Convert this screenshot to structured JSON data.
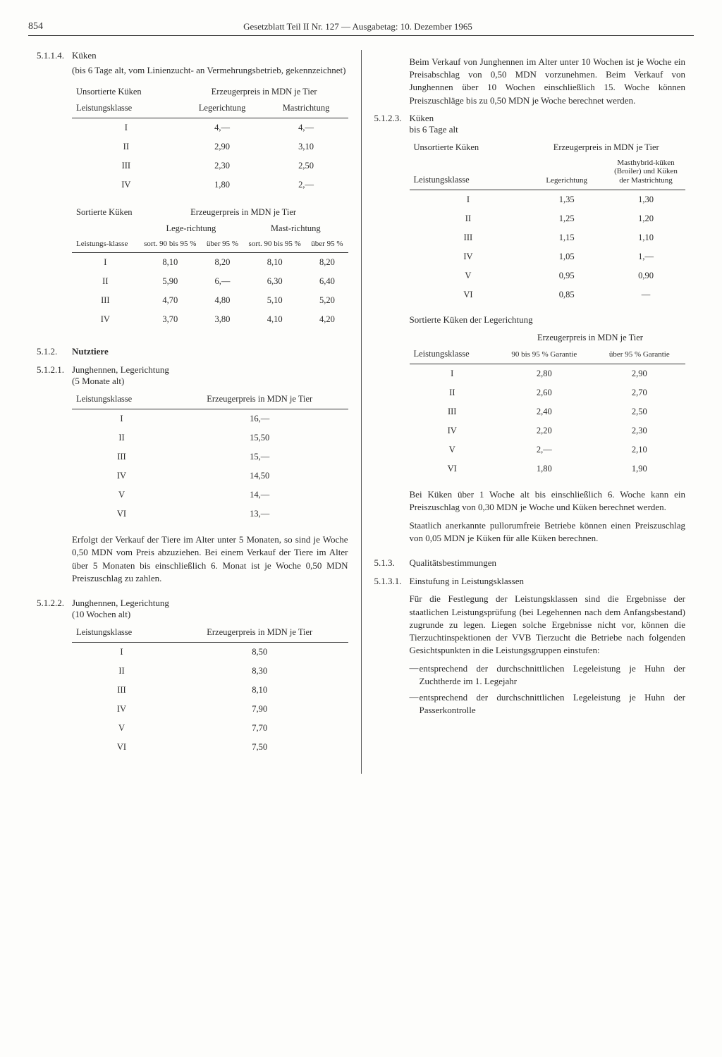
{
  "header": {
    "page": "854",
    "title": "Gesetzblatt Teil II Nr. 127 — Ausgabetag: 10. Dezember 1965"
  },
  "left": {
    "s5114": {
      "num": "5.1.1.4.",
      "title": "Küken",
      "note": "(bis 6 Tage alt, vom Linienzucht- an Vermehrungsbetrieb, gekennzeichnet)",
      "table1": {
        "h1": "Unsortierte Küken",
        "h2": "Erzeugerpreis in MDN je Tier",
        "c1": "Leistungsklasse",
        "c2": "Legerichtung",
        "c3": "Mastrichtung",
        "rows": [
          {
            "k": "I",
            "a": "4,—",
            "b": "4,—"
          },
          {
            "k": "II",
            "a": "2,90",
            "b": "3,10"
          },
          {
            "k": "III",
            "a": "2,30",
            "b": "2,50"
          },
          {
            "k": "IV",
            "a": "1,80",
            "b": "2,—"
          }
        ]
      },
      "table2": {
        "h1": "Sortierte Küken",
        "h2": "Erzeugerpreis in MDN je Tier",
        "g1": "Lege-richtung",
        "g2": "Mast-richtung",
        "c0": "Leistungs-klasse",
        "c1": "sort. 90 bis 95 %",
        "c2": "über 95 %",
        "c3": "sort. 90 bis 95 %",
        "c4": "über 95 %",
        "rows": [
          {
            "k": "I",
            "a": "8,10",
            "b": "8,20",
            "c": "8,10",
            "d": "8,20"
          },
          {
            "k": "II",
            "a": "5,90",
            "b": "6,—",
            "c": "6,30",
            "d": "6,40"
          },
          {
            "k": "III",
            "a": "4,70",
            "b": "4,80",
            "c": "5,10",
            "d": "5,20"
          },
          {
            "k": "IV",
            "a": "3,70",
            "b": "3,80",
            "c": "4,10",
            "d": "4,20"
          }
        ]
      }
    },
    "s512": {
      "num": "5.1.2.",
      "title": "Nutztiere"
    },
    "s5121": {
      "num": "5.1.2.1.",
      "title": "Junghennen, Legerichtung",
      "sub": "(5 Monate alt)",
      "c1": "Leistungsklasse",
      "c2": "Erzeugerpreis in MDN je Tier",
      "rows": [
        {
          "k": "I",
          "v": "16,—"
        },
        {
          "k": "II",
          "v": "15,50"
        },
        {
          "k": "III",
          "v": "15,—"
        },
        {
          "k": "IV",
          "v": "14,50"
        },
        {
          "k": "V",
          "v": "14,—"
        },
        {
          "k": "VI",
          "v": "13,—"
        }
      ],
      "para": "Erfolgt der Verkauf der Tiere im Alter unter 5 Monaten, so sind je Woche 0,50 MDN vom Preis abzuziehen. Bei einem Verkauf der Tiere im Alter über 5 Monaten bis einschließlich 6. Monat ist je Woche 0,50 MDN Preiszuschlag zu zahlen."
    },
    "s5122": {
      "num": "5.1.2.2.",
      "title": "Junghennen, Legerichtung",
      "sub": "(10 Wochen alt)",
      "c1": "Leistungsklasse",
      "c2": "Erzeugerpreis in MDN je Tier",
      "rows": [
        {
          "k": "I",
          "v": "8,50"
        },
        {
          "k": "II",
          "v": "8,30"
        },
        {
          "k": "III",
          "v": "8,10"
        },
        {
          "k": "IV",
          "v": "7,90"
        },
        {
          "k": "V",
          "v": "7,70"
        },
        {
          "k": "VI",
          "v": "7,50"
        }
      ]
    }
  },
  "right": {
    "intro": "Beim Verkauf von Junghennen im Alter unter 10 Wochen ist je Woche ein Preisabschlag von 0,50 MDN vorzunehmen. Beim Verkauf von Junghennen über 10 Wochen einschließlich 15. Woche können Preiszuschläge bis zu 0,50 MDN je Woche berechnet werden.",
    "s5123": {
      "num": "5.1.2.3.",
      "title": "Küken",
      "sub": "bis 6 Tage alt",
      "table1": {
        "h1": "Unsortierte Küken",
        "h2": "Erzeugerpreis in MDN je Tier",
        "c1": "Leistungsklasse",
        "c2": "Legerichtung",
        "c3": "Masthybrid-küken (Broiler) und Küken der Mastrichtung",
        "rows": [
          {
            "k": "I",
            "a": "1,35",
            "b": "1,30"
          },
          {
            "k": "II",
            "a": "1,25",
            "b": "1,20"
          },
          {
            "k": "III",
            "a": "1,15",
            "b": "1,10"
          },
          {
            "k": "IV",
            "a": "1,05",
            "b": "1,—"
          },
          {
            "k": "V",
            "a": "0,95",
            "b": "0,90"
          },
          {
            "k": "VI",
            "a": "0,85",
            "b": "—"
          }
        ]
      },
      "table2": {
        "caption": "Sortierte Küken der Legerichtung",
        "h2": "Erzeugerpreis in MDN je Tier",
        "c1": "Leistungsklasse",
        "c2": "90 bis 95 % Garantie",
        "c3": "über 95 % Garantie",
        "rows": [
          {
            "k": "I",
            "a": "2,80",
            "b": "2,90"
          },
          {
            "k": "II",
            "a": "2,60",
            "b": "2,70"
          },
          {
            "k": "III",
            "a": "2,40",
            "b": "2,50"
          },
          {
            "k": "IV",
            "a": "2,20",
            "b": "2,30"
          },
          {
            "k": "V",
            "a": "2,—",
            "b": "2,10"
          },
          {
            "k": "VI",
            "a": "1,80",
            "b": "1,90"
          }
        ]
      },
      "para1": "Bei Küken über 1 Woche alt bis einschließlich 6. Woche kann ein Preiszuschlag von 0,30 MDN je Woche und Küken berechnet werden.",
      "para2": "Staatlich anerkannte pullorumfreie Betriebe können einen Preiszuschlag von 0,05 MDN je Küken für alle Küken berechnen."
    },
    "s513": {
      "num": "5.1.3.",
      "title": "Qualitätsbestimmungen"
    },
    "s5131": {
      "num": "5.1.3.1.",
      "title": "Einstufung in Leistungsklassen",
      "para": "Für die Festlegung der Leistungsklassen sind die Ergebnisse der staatlichen Leistungsprüfung (bei Legehennen nach dem Anfangsbestand) zugrunde zu legen. Liegen solche Ergebnisse nicht vor, können die Tierzuchtinspektionen der VVB Tierzucht die Betriebe nach folgenden Gesichtspunkten in die Leistungsgruppen einstufen:",
      "li1": "entsprechend der durchschnittlichen Legeleistung je Huhn der Zuchtherde im 1. Legejahr",
      "li2": "entsprechend der durchschnittlichen Legeleistung je Huhn der Passerkontrolle"
    }
  }
}
